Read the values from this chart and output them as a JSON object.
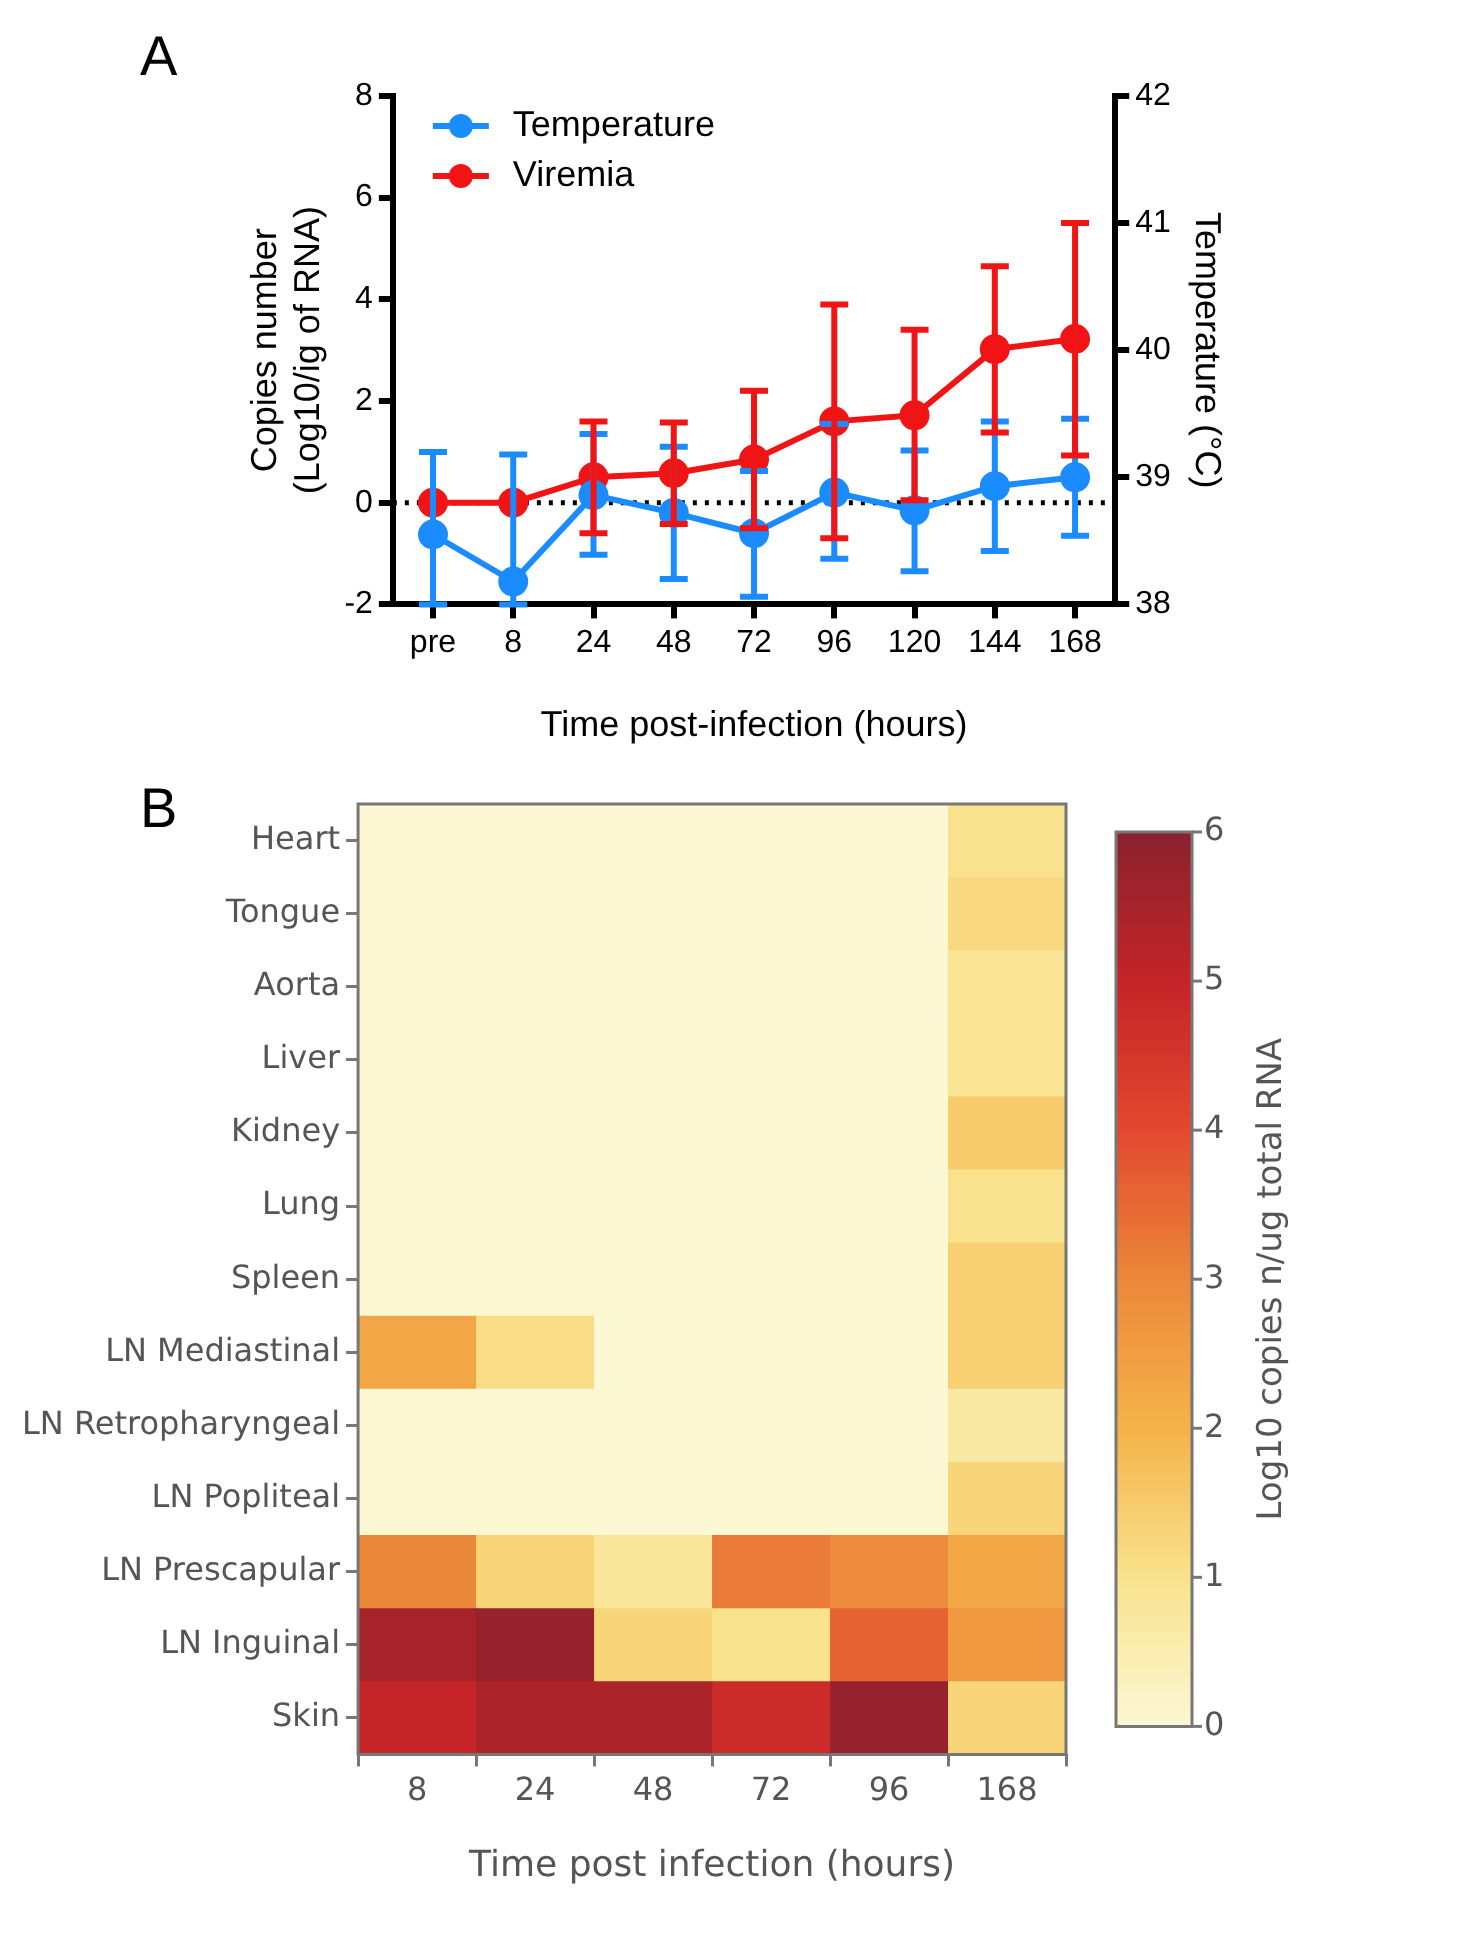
{
  "chart_data": [
    {
      "type": "line",
      "title": "A",
      "xlabel": "Time post-infection (hours)",
      "ylabel": "Copies number\n(Log10/ig of RNA)",
      "y2label": "Temperature (°C)",
      "categories": [
        "pre",
        "8",
        "24",
        "48",
        "72",
        "96",
        "120",
        "144",
        "168"
      ],
      "series": [
        {
          "name": "Temperature",
          "color": "#1a8cff",
          "axis": "y2",
          "values": [
            38.55,
            38.18,
            38.86,
            38.72,
            38.56,
            38.88,
            38.74,
            38.93,
            39.0
          ],
          "errors": [
            [
              38.0,
              39.2
            ],
            [
              38.0,
              39.18
            ],
            [
              38.39,
              39.34
            ],
            [
              38.2,
              39.24
            ],
            [
              38.06,
              39.05
            ],
            [
              38.36,
              39.42
            ],
            [
              38.26,
              39.21
            ],
            [
              38.42,
              39.44
            ],
            [
              38.54,
              39.46
            ]
          ]
        },
        {
          "name": "Viremia",
          "color": "#f01414",
          "values": [
            0,
            0,
            0.5,
            0.58,
            0.85,
            1.6,
            1.72,
            3.02,
            3.22
          ],
          "errors": [
            null,
            null,
            [
              -0.6,
              1.6
            ],
            [
              -0.42,
              1.58
            ],
            [
              -0.5,
              2.2
            ],
            [
              -0.7,
              3.9
            ],
            [
              0.05,
              3.4
            ],
            [
              1.38,
              4.65
            ],
            [
              0.93,
              5.5
            ]
          ]
        }
      ],
      "ylim": [
        -2,
        8
      ],
      "yticks": [
        -2,
        0,
        2,
        4,
        6,
        8
      ],
      "y2lim": [
        38,
        42
      ],
      "y2ticks": [
        38,
        39,
        40,
        41,
        42
      ],
      "ref_lines": [
        {
          "axis": "y",
          "value": 0,
          "color": "#000000",
          "line_style": "dotted"
        }
      ],
      "legend": "top left",
      "marker": "circle",
      "grid": false
    },
    {
      "type": "heatmap",
      "title": "B",
      "xlabel": "Time post infection (hours)",
      "clabel": "Log10 copies n/ug total RNA",
      "categories": [
        "8",
        "24",
        "48",
        "72",
        "96",
        "168"
      ],
      "y_categories": [
        "Heart",
        "Tongue",
        "Aorta",
        "Liver",
        "Kidney",
        "Lung",
        "Spleen",
        "LN Mediastinal",
        "LN Retropharyngeal",
        "LN Popliteal",
        "LN Prescapular",
        "LN Inguinal",
        "Skin"
      ],
      "cells": [
        [
          0,
          0,
          0,
          0,
          0,
          1.0
        ],
        [
          0,
          0,
          0,
          0,
          0,
          1.2
        ],
        [
          0,
          0,
          0,
          0,
          0,
          0.9
        ],
        [
          0,
          0,
          0,
          0,
          0,
          0.9
        ],
        [
          0,
          0,
          0,
          0,
          0,
          1.5
        ],
        [
          0,
          0,
          0,
          0,
          0,
          1.0
        ],
        [
          0,
          0,
          0,
          0,
          0,
          1.4
        ],
        [
          2.3,
          1.1,
          0,
          0,
          0,
          1.4
        ],
        [
          0,
          0,
          0,
          0,
          0,
          0.7
        ],
        [
          0,
          0,
          0,
          0,
          0,
          1.3
        ],
        [
          3.0,
          1.3,
          0.8,
          3.2,
          2.9,
          2.3
        ],
        [
          5.5,
          5.8,
          1.3,
          1.0,
          3.6,
          2.6
        ],
        [
          5.0,
          5.4,
          5.4,
          4.8,
          5.8,
          1.3
        ]
      ],
      "clim": [
        0,
        6
      ],
      "cticks": [
        0,
        1,
        2,
        3,
        4,
        5,
        6
      ]
    }
  ]
}
